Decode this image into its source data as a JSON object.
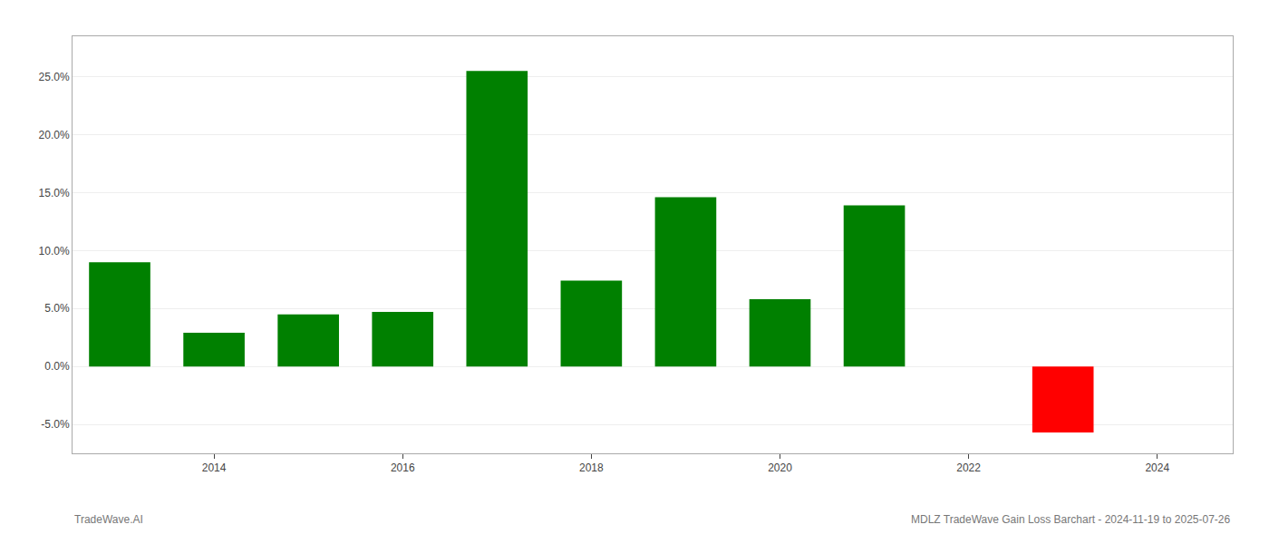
{
  "chart_data": {
    "type": "bar",
    "x": [
      2013,
      2014,
      2015,
      2016,
      2017,
      2018,
      2019,
      2020,
      2021,
      2023
    ],
    "values": [
      0.09,
      0.029,
      0.045,
      0.047,
      0.255,
      0.074,
      0.146,
      0.058,
      0.139,
      -0.057
    ],
    "colors": [
      "#008000",
      "#008000",
      "#008000",
      "#008000",
      "#008000",
      "#008000",
      "#008000",
      "#008000",
      "#008000",
      "#ff0000"
    ],
    "xlim": [
      2012.5,
      2024.8
    ],
    "xticks": [
      2014,
      2016,
      2018,
      2020,
      2022,
      2024
    ],
    "ylim": [
      -0.075,
      0.285
    ],
    "yticks": [
      {
        "value": -0.05,
        "label": "-5.0%"
      },
      {
        "value": 0.0,
        "label": "0.0%"
      },
      {
        "value": 0.05,
        "label": "5.0%"
      },
      {
        "value": 0.1,
        "label": "10.0%"
      },
      {
        "value": 0.15,
        "label": "15.0%"
      },
      {
        "value": 0.2,
        "label": "20.0%"
      },
      {
        "value": 0.25,
        "label": "25.0%"
      }
    ],
    "grid": true,
    "annotations": [
      "TradeWave.AI",
      "MDLZ TradeWave Gain Loss Barchart - 2024-11-19 to 2025-07-26"
    ]
  }
}
